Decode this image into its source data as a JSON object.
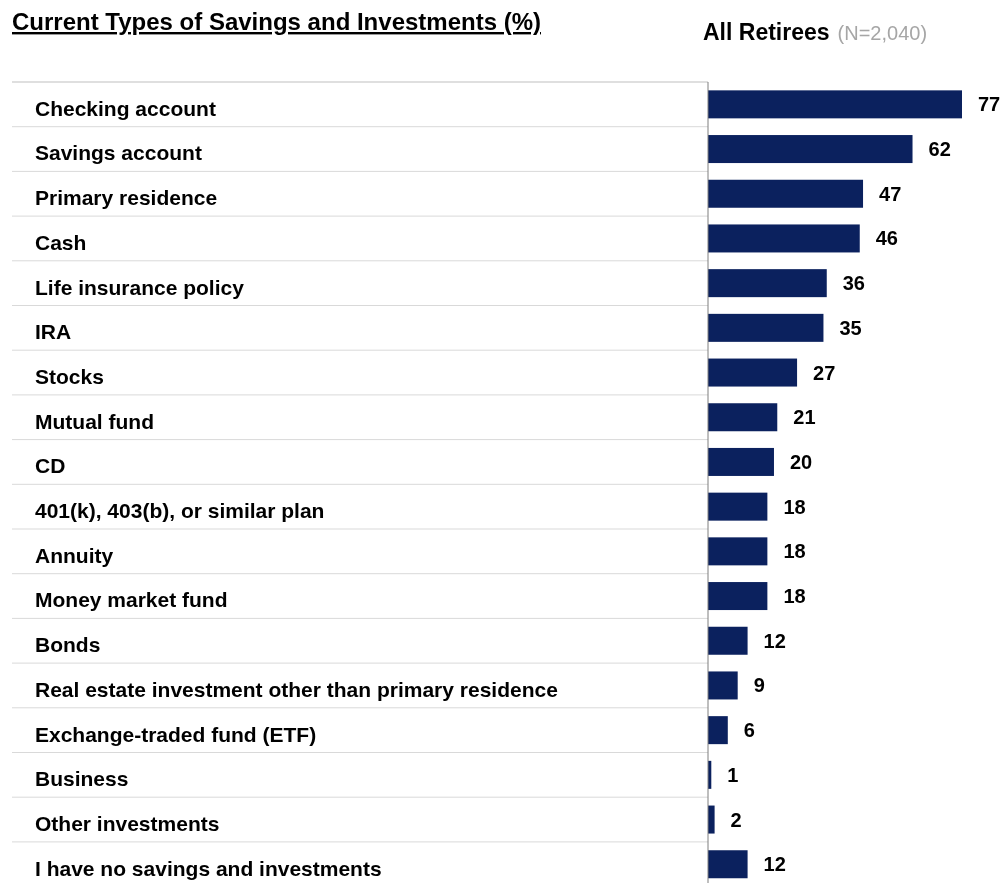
{
  "chart_data": {
    "type": "bar",
    "orientation": "horizontal",
    "title": "Current Types of Savings and Investments (%)",
    "subtitle": "All Retirees",
    "annotations": [
      "(N=2,040)"
    ],
    "categories": [
      "Checking account",
      "Savings account",
      "Primary residence",
      "Cash",
      "Life insurance policy",
      "IRA",
      "Stocks",
      "Mutual fund",
      "CD",
      "401(k), 403(b), or similar plan",
      "Annuity",
      "Money market fund",
      "Bonds",
      "Real estate investment other than primary residence",
      "Exchange-traded fund (ETF)",
      "Business",
      "Other investments",
      "I have no savings and investments"
    ],
    "values": [
      77,
      62,
      47,
      46,
      36,
      35,
      27,
      21,
      20,
      18,
      18,
      18,
      12,
      9,
      6,
      1,
      2,
      12
    ],
    "color": "#0b215e",
    "data_labels": true
  }
}
